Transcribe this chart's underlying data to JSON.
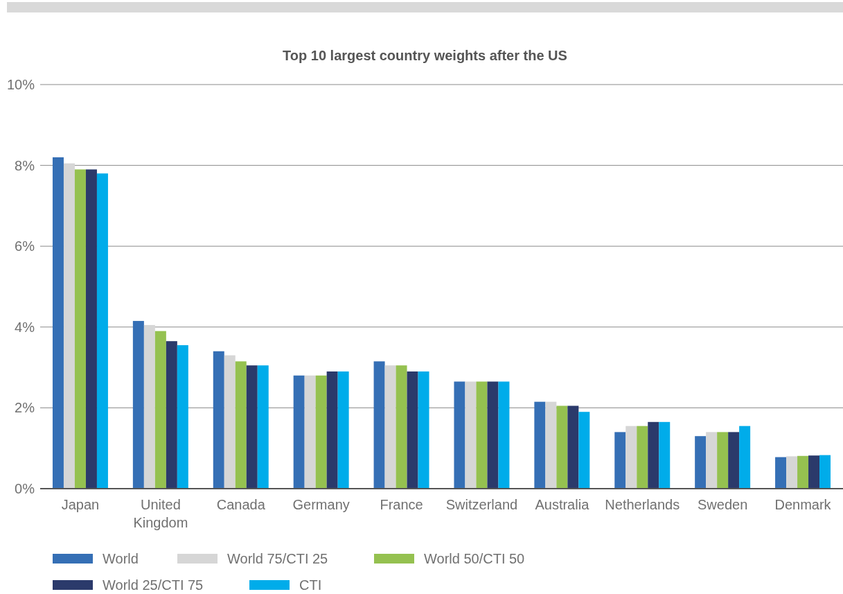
{
  "chart_data": {
    "type": "bar",
    "title": "Top 10 largest country weights after the US",
    "categories": [
      "Japan",
      "United Kingdom",
      "Canada",
      "Germany",
      "France",
      "Switzerland",
      "Australia",
      "Netherlands",
      "Sweden",
      "Denmark"
    ],
    "series": [
      {
        "name": "World",
        "color": "#356fb5",
        "values": [
          8.2,
          4.15,
          3.4,
          2.8,
          3.15,
          2.65,
          2.15,
          1.4,
          1.3,
          0.78
        ]
      },
      {
        "name": "World 75/CTI 25",
        "color": "#d6d6d6",
        "values": [
          8.05,
          4.05,
          3.3,
          2.8,
          3.05,
          2.65,
          2.15,
          1.55,
          1.4,
          0.8
        ]
      },
      {
        "name": "World 50/CTI 50",
        "color": "#95c150",
        "values": [
          7.9,
          3.9,
          3.15,
          2.8,
          3.05,
          2.65,
          2.05,
          1.55,
          1.4,
          0.81
        ]
      },
      {
        "name": "World 25/CTI 75",
        "color": "#2b3a6b",
        "values": [
          7.9,
          3.65,
          3.05,
          2.9,
          2.9,
          2.65,
          2.05,
          1.65,
          1.4,
          0.82
        ]
      },
      {
        "name": "CTI",
        "color": "#00acea",
        "values": [
          7.8,
          3.55,
          3.05,
          2.9,
          2.9,
          2.65,
          1.9,
          1.65,
          1.55,
          0.83
        ]
      }
    ],
    "ylim": [
      0,
      10
    ],
    "yticks": [
      {
        "value": 0,
        "label": "0%"
      },
      {
        "value": 2,
        "label": "2%"
      },
      {
        "value": 4,
        "label": "4%"
      },
      {
        "value": 6,
        "label": "6%"
      },
      {
        "value": 8,
        "label": "8%"
      },
      {
        "value": 10,
        "label": "10%"
      }
    ],
    "grid": "y",
    "legend": "bottom"
  }
}
